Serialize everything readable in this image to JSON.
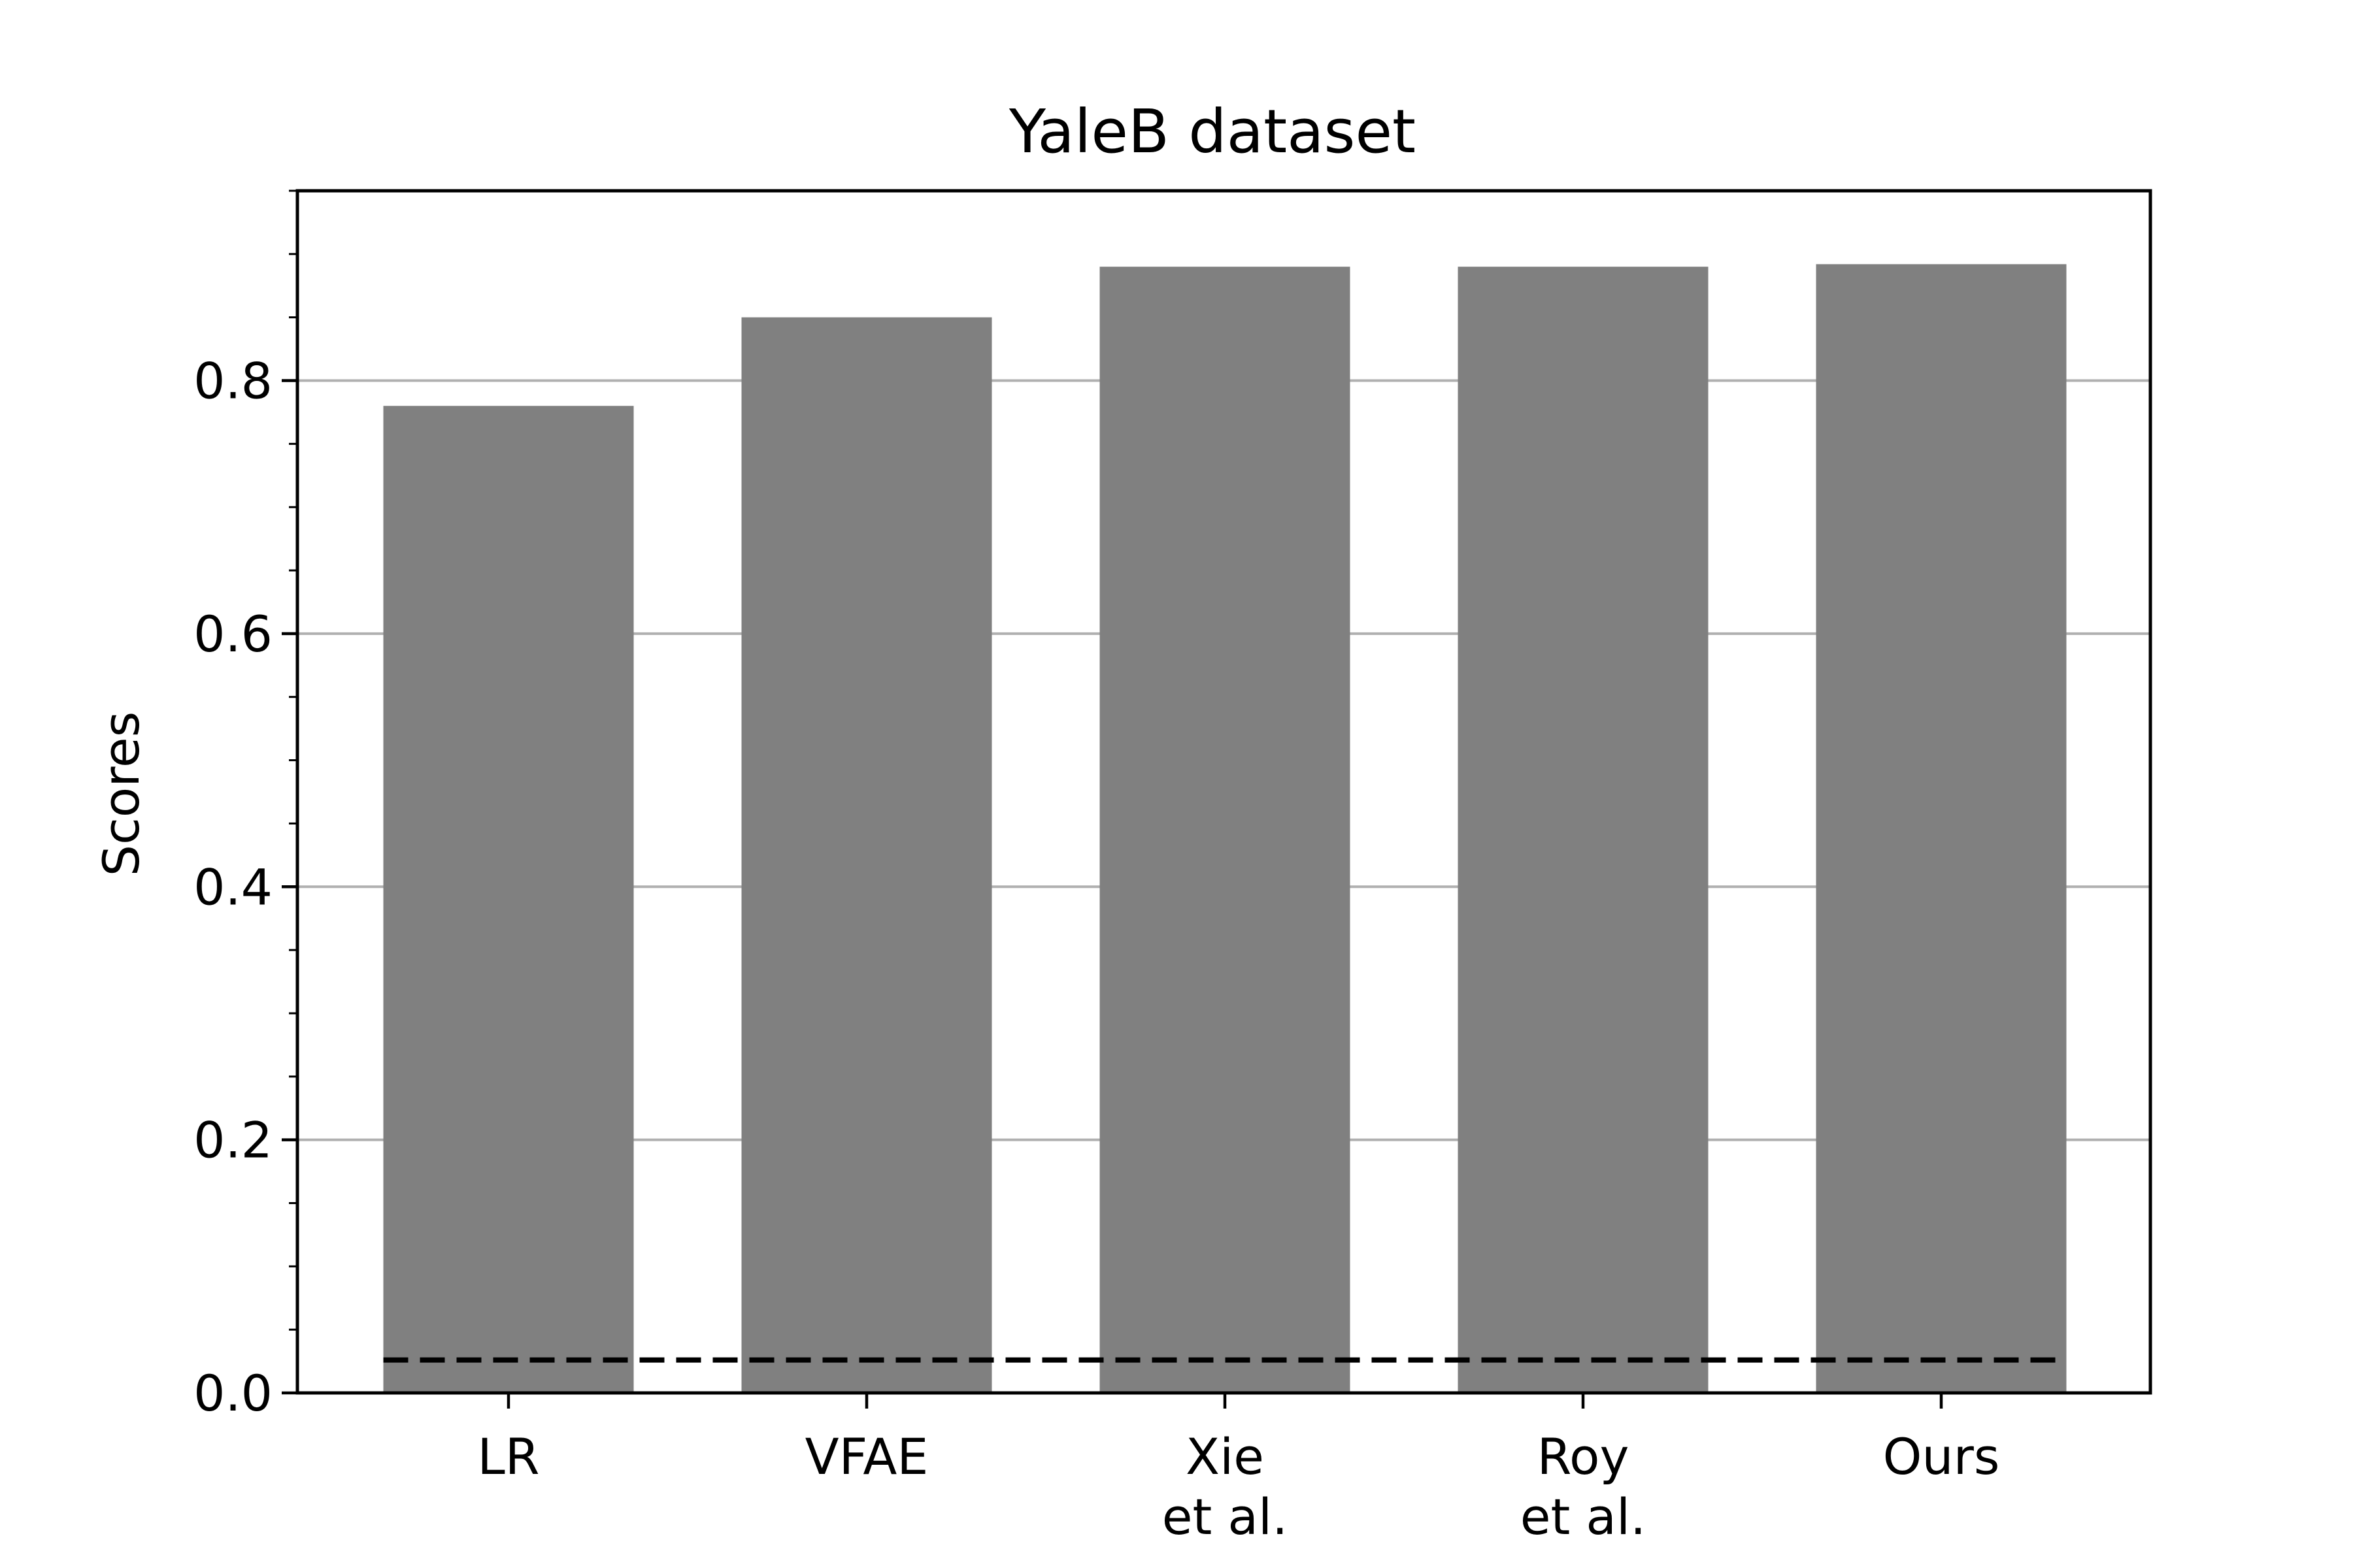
{
  "chart_data": {
    "type": "bar",
    "title": "YaleB dataset",
    "xlabel": "",
    "ylabel": "Scores",
    "categories": [
      [
        "LR"
      ],
      [
        "VFAE"
      ],
      [
        "Xie",
        "et al."
      ],
      [
        "Roy",
        "et al."
      ],
      [
        "Ours"
      ]
    ],
    "values": [
      0.78,
      0.85,
      0.89,
      0.89,
      0.892
    ],
    "ylim": [
      0,
      0.95
    ],
    "yticks": [
      "0.0",
      "0.2",
      "0.4",
      "0.6",
      "0.8"
    ],
    "ytick_values": [
      0.0,
      0.2,
      0.4,
      0.6,
      0.8
    ],
    "minor_tick_step": 0.05,
    "reference_line": {
      "value": 0.026,
      "style": "dashed"
    },
    "grid": "horizontal",
    "bar_color": "#808080",
    "reference_line_color": "#000000",
    "grid_color": "#b0b0b0"
  }
}
